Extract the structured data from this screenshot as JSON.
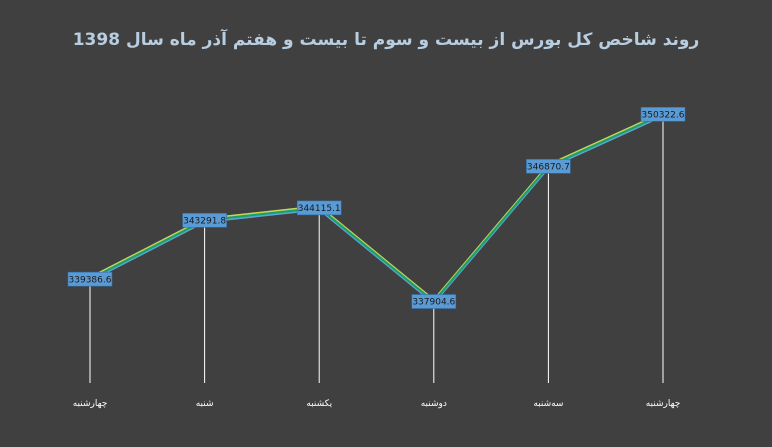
{
  "chart_data": {
    "type": "line",
    "title": "روند شاخص کل بورس از بیست و سوم تا بیست و هفتم آذر ماه سال 1398",
    "categories": [
      "چهارشنبه",
      "شنبه",
      "یکشنبه",
      "دوشنبه",
      "سه‌شنبه",
      "چهارشنبه"
    ],
    "values": [
      339386.6,
      343291.8,
      344115.1,
      337904.6,
      346870.7,
      350322.6
    ],
    "data_labels": [
      "339386.6",
      "343291.8",
      "344115.1",
      "337904.6",
      "346870.7",
      "350322.6"
    ],
    "ylim": [
      332500,
      352000
    ],
    "grid": false,
    "legend": "none",
    "colors": {
      "background": "#404040",
      "title": "#b8cde0",
      "line": "#1e9e6a",
      "line_secondary": "#5aa7d6",
      "line_tertiary": "#c9d65a",
      "label_box": "#5b9bd5",
      "label_text": "#1a1a1a",
      "drop_line": "#ffffff",
      "category_text": "#ffffff"
    }
  }
}
